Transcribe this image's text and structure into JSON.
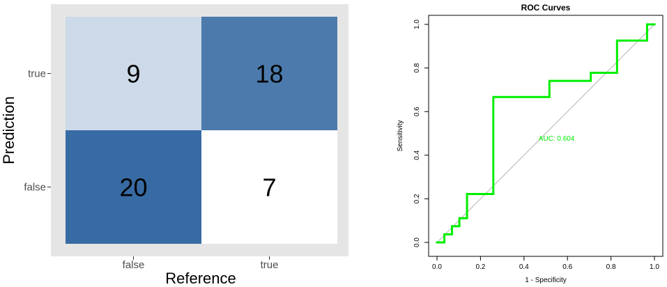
{
  "chart_data": [
    {
      "type": "heatmap",
      "xlabel": "Reference",
      "ylabel": "Prediction",
      "x_categories": [
        "false",
        "true"
      ],
      "y_categories": [
        "true",
        "false"
      ],
      "cells": [
        {
          "reference": "false",
          "prediction": "true",
          "value": 9,
          "color": "#ccd9e8"
        },
        {
          "reference": "true",
          "prediction": "true",
          "value": 18,
          "color": "#4c7aac"
        },
        {
          "reference": "false",
          "prediction": "false",
          "value": 20,
          "color": "#386ba3"
        },
        {
          "reference": "true",
          "prediction": "false",
          "value": 7,
          "color": "#ffffff"
        }
      ],
      "panel_background": "#e5e5e5",
      "grid": false
    },
    {
      "type": "line",
      "title": "ROC Curves",
      "xlabel": "1 - Specificity",
      "ylabel": "Sensitivity",
      "xlim": [
        0,
        1
      ],
      "ylim": [
        0,
        1
      ],
      "x_ticks": [
        0.0,
        0.2,
        0.4,
        0.6,
        0.8,
        1.0
      ],
      "x_tick_labels": [
        "0.0",
        "0.2",
        "0.4",
        "0.6",
        "0.8",
        "1.0"
      ],
      "y_ticks": [
        0.0,
        0.2,
        0.4,
        0.6,
        0.8,
        1.0
      ],
      "y_tick_labels": [
        "0.0",
        "0.2",
        "0.4",
        "0.6",
        "0.8",
        "1.0"
      ],
      "annotation": "AUC: 0.604",
      "annotation_position": {
        "x": 0.55,
        "y": 0.48
      },
      "reference_line": {
        "from": [
          0,
          0
        ],
        "to": [
          1,
          1
        ],
        "color": "#b3b3b3"
      },
      "series": [
        {
          "color": "#00ee00",
          "x": [
            0.0,
            0.034,
            0.034,
            0.069,
            0.069,
            0.103,
            0.103,
            0.138,
            0.138,
            0.259,
            0.259,
            0.517,
            0.517,
            0.707,
            0.707,
            0.828,
            0.828,
            0.966,
            0.966,
            1.0
          ],
          "y": [
            0.0,
            0.0,
            0.037,
            0.037,
            0.074,
            0.074,
            0.111,
            0.111,
            0.222,
            0.222,
            0.667,
            0.667,
            0.741,
            0.741,
            0.778,
            0.778,
            0.926,
            0.926,
            1.0,
            1.0
          ]
        }
      ]
    }
  ]
}
